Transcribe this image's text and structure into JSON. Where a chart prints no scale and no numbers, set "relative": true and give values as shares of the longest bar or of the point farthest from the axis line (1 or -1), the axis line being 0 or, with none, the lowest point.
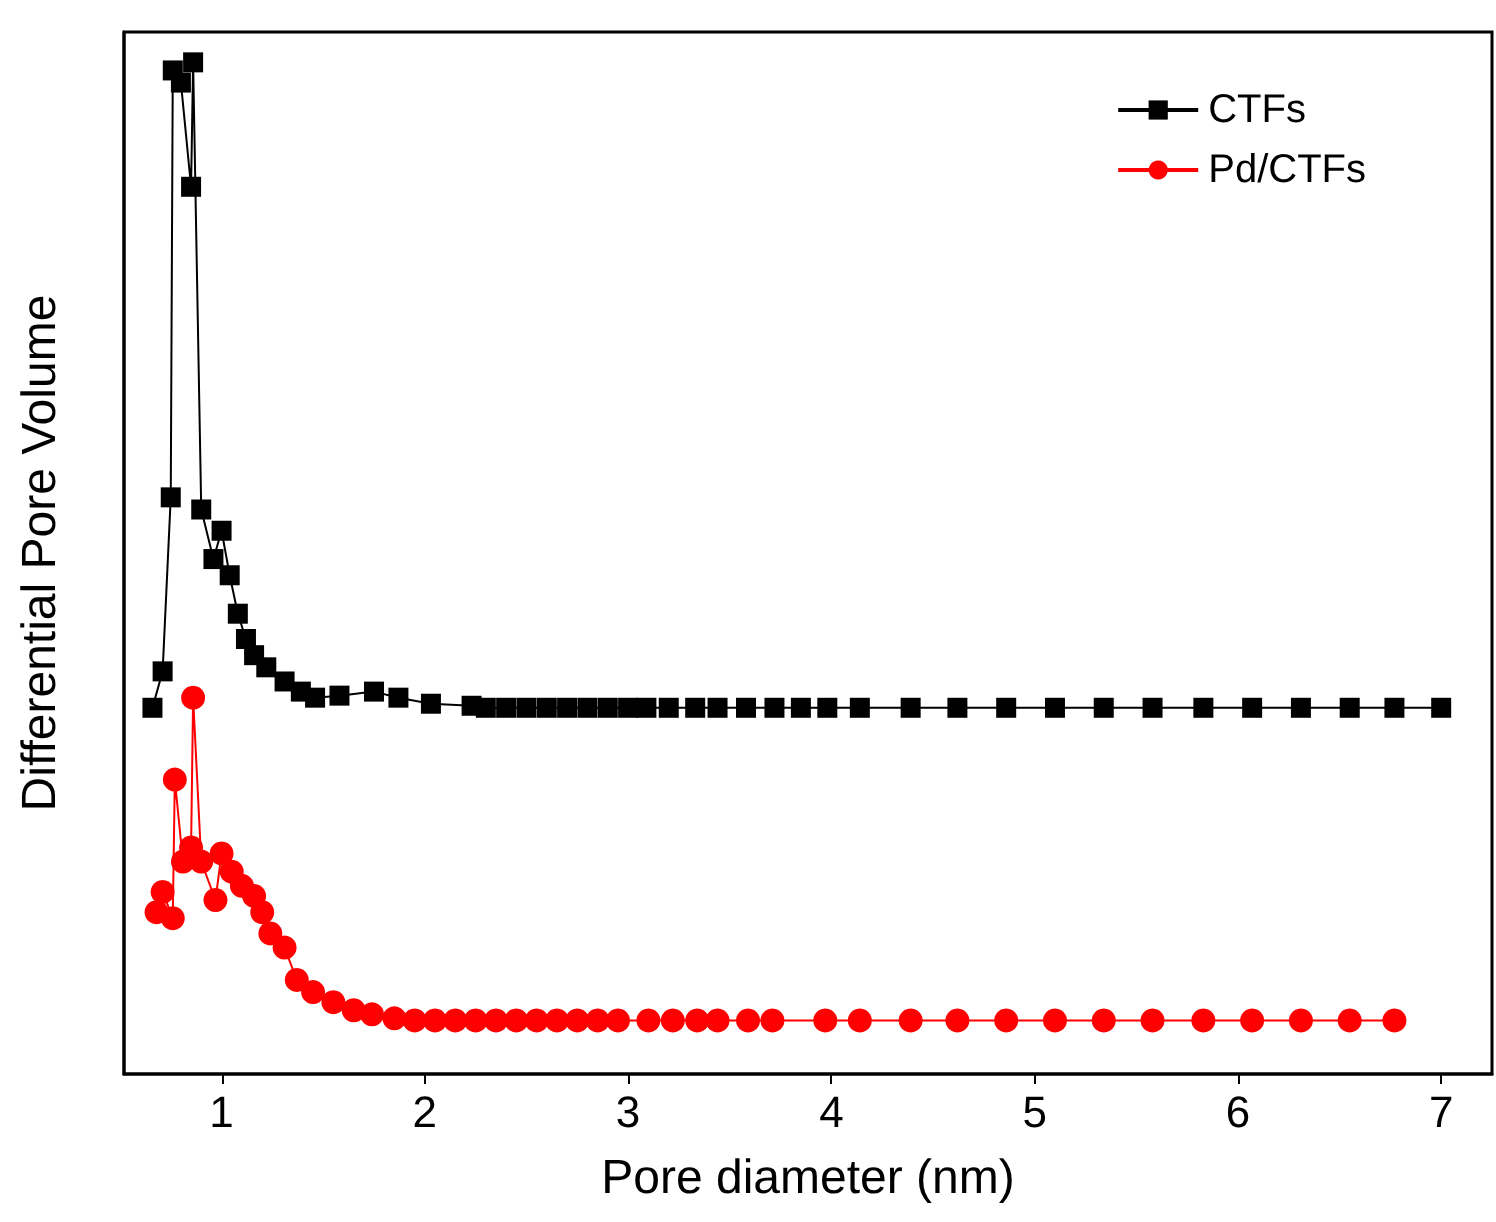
{
  "chart_data": {
    "type": "line",
    "xlabel": "Pore diameter (nm)",
    "ylabel": "Differential Pore Volume",
    "relative": true,
    "xlim": [
      0.52,
      7.25
    ],
    "xticks": [
      1,
      2,
      3,
      4,
      5,
      6,
      7
    ],
    "grid": false,
    "legend": "top right",
    "series": [
      {
        "name": "CTFs",
        "color": "#000000",
        "marker": "square",
        "x": [
          0.66,
          0.71,
          0.75,
          0.76,
          0.8,
          0.85,
          0.86,
          0.9,
          0.96,
          1.0,
          1.04,
          1.08,
          1.12,
          1.16,
          1.22,
          1.31,
          1.39,
          1.46,
          1.58,
          1.75,
          1.87,
          2.03,
          2.23,
          2.3,
          2.4,
          2.5,
          2.6,
          2.7,
          2.8,
          2.9,
          3.0,
          3.09,
          3.2,
          3.33,
          3.44,
          3.58,
          3.72,
          3.85,
          3.98,
          4.14,
          4.39,
          4.62,
          4.86,
          5.1,
          5.34,
          5.58,
          5.83,
          6.07,
          6.31,
          6.55,
          6.77,
          7.0
        ],
        "values": [
          0.362,
          0.398,
          0.57,
          0.992,
          0.98,
          0.877,
          1.0,
          0.558,
          0.509,
          0.537,
          0.493,
          0.455,
          0.43,
          0.414,
          0.402,
          0.388,
          0.378,
          0.372,
          0.374,
          0.378,
          0.372,
          0.366,
          0.364,
          0.362,
          0.362,
          0.362,
          0.362,
          0.362,
          0.362,
          0.362,
          0.362,
          0.362,
          0.362,
          0.362,
          0.362,
          0.362,
          0.362,
          0.362,
          0.362,
          0.362,
          0.362,
          0.362,
          0.362,
          0.362,
          0.362,
          0.362,
          0.362,
          0.362,
          0.362,
          0.362,
          0.362,
          0.362
        ]
      },
      {
        "name": "Pd/CTFs",
        "color": "#ff0000",
        "marker": "circle",
        "x": [
          0.68,
          0.71,
          0.76,
          0.77,
          0.81,
          0.85,
          0.86,
          0.9,
          0.97,
          1.0,
          1.05,
          1.1,
          1.16,
          1.2,
          1.24,
          1.31,
          1.37,
          1.45,
          1.55,
          1.65,
          1.74,
          1.85,
          1.95,
          2.05,
          2.15,
          2.25,
          2.35,
          2.45,
          2.55,
          2.65,
          2.75,
          2.85,
          2.95,
          3.1,
          3.22,
          3.34,
          3.44,
          3.59,
          3.71,
          3.97,
          4.14,
          4.39,
          4.62,
          4.86,
          5.1,
          5.34,
          5.58,
          5.83,
          6.07,
          6.31,
          6.55,
          6.77
        ],
        "values": [
          0.16,
          0.18,
          0.154,
          0.291,
          0.21,
          0.224,
          0.372,
          0.21,
          0.172,
          0.218,
          0.2,
          0.186,
          0.176,
          0.16,
          0.139,
          0.125,
          0.093,
          0.081,
          0.071,
          0.063,
          0.059,
          0.055,
          0.053,
          0.053,
          0.053,
          0.053,
          0.053,
          0.053,
          0.053,
          0.053,
          0.053,
          0.053,
          0.053,
          0.053,
          0.053,
          0.053,
          0.053,
          0.053,
          0.053,
          0.053,
          0.053,
          0.053,
          0.053,
          0.053,
          0.053,
          0.053,
          0.053,
          0.053,
          0.053,
          0.053,
          0.053,
          0.053
        ]
      }
    ]
  }
}
